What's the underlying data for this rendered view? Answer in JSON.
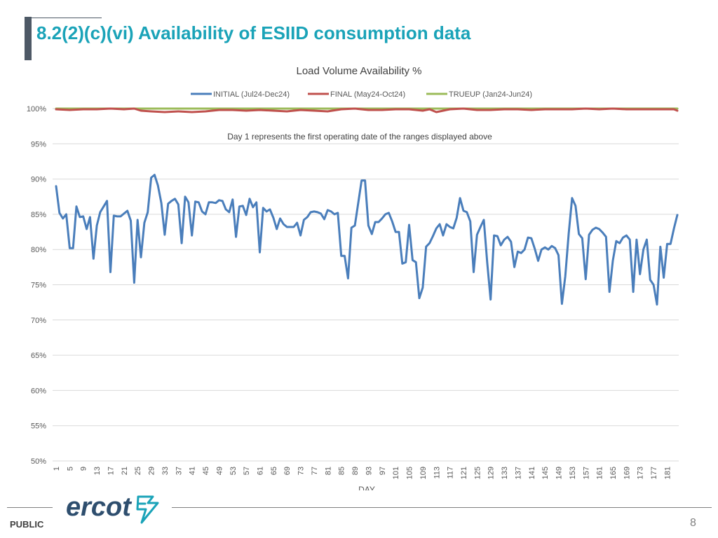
{
  "slide": {
    "title": "8.2(2)(c)(vi) Availability of ESIID consumption data",
    "footer_label": "PUBLIC",
    "page_number": "8",
    "logo_text": "ercot"
  },
  "colors": {
    "title": "#1aa3b8",
    "initial": "#4a7ebb",
    "final": "#c0504d",
    "trueup": "#9bbb59",
    "grid": "#d9d9d9",
    "text": "#595959"
  },
  "chart_data": {
    "type": "line",
    "title": "Load Volume Availability %",
    "xlabel": "DAY",
    "ylabel": "",
    "annotation": "Day 1 represents the first operating date of the ranges displayed above",
    "ylim": [
      50,
      100
    ],
    "yticks": [
      50,
      55,
      60,
      65,
      70,
      75,
      80,
      85,
      90,
      95,
      100
    ],
    "ytick_labels": [
      "50%",
      "55%",
      "60%",
      "65%",
      "70%",
      "75%",
      "80%",
      "85%",
      "90%",
      "95%",
      "100%"
    ],
    "xlim": [
      1,
      184
    ],
    "xticks": [
      1,
      5,
      9,
      13,
      17,
      21,
      25,
      29,
      33,
      37,
      41,
      45,
      49,
      53,
      57,
      61,
      65,
      69,
      73,
      77,
      81,
      85,
      89,
      93,
      97,
      101,
      105,
      109,
      113,
      117,
      121,
      125,
      129,
      133,
      137,
      141,
      145,
      149,
      153,
      157,
      161,
      165,
      169,
      173,
      177,
      181
    ],
    "legend_position": "top",
    "grid": true,
    "series": [
      {
        "name": "INITIAL (Jul24-Dec24)",
        "color": "#4a7ebb",
        "x": [
          1,
          2,
          3,
          4,
          5,
          6,
          7,
          8,
          9,
          10,
          11,
          12,
          13,
          14,
          15,
          16,
          17,
          18,
          19,
          20,
          21,
          22,
          23,
          24,
          25,
          26,
          27,
          28,
          29,
          30,
          31,
          32,
          33,
          34,
          35,
          36,
          37,
          38,
          39,
          40,
          41,
          42,
          43,
          44,
          45,
          46,
          47,
          48,
          49,
          50,
          51,
          52,
          53,
          54,
          55,
          56,
          57,
          58,
          59,
          60,
          61,
          62,
          63,
          64,
          65,
          66,
          67,
          68,
          69,
          70,
          71,
          72,
          73,
          74,
          75,
          76,
          77,
          78,
          79,
          80,
          81,
          82,
          83,
          84,
          85,
          86,
          87,
          88,
          89,
          90,
          91,
          92,
          93,
          94,
          95,
          96,
          97,
          98,
          99,
          100,
          101,
          102,
          103,
          104,
          105,
          106,
          107,
          108,
          109,
          110,
          111,
          112,
          113,
          114,
          115,
          116,
          117,
          118,
          119,
          120,
          121,
          122,
          123,
          124,
          125,
          126,
          127,
          128,
          129,
          130,
          131,
          132,
          133,
          134,
          135,
          136,
          137,
          138,
          139,
          140,
          141,
          142,
          143,
          144,
          145,
          146,
          147,
          148,
          149,
          150,
          151,
          152,
          153,
          154,
          155,
          156,
          157,
          158,
          159,
          160,
          161,
          162,
          163,
          164,
          165,
          166,
          167,
          168,
          169,
          170,
          171,
          172,
          173,
          174,
          175,
          176,
          177,
          178,
          179,
          180,
          181,
          182,
          183,
          184
        ],
        "values": [
          89.0,
          85.2,
          84.4,
          85.0,
          80.2,
          80.2,
          86.1,
          84.6,
          84.7,
          82.9,
          84.6,
          78.7,
          83.4,
          85.3,
          86.1,
          86.9,
          76.8,
          84.8,
          84.7,
          84.7,
          85.1,
          85.5,
          84.1,
          75.3,
          84.2,
          78.9,
          83.8,
          85.3,
          90.2,
          90.6,
          89.1,
          86.6,
          82.1,
          86.5,
          86.9,
          87.2,
          86.4,
          80.9,
          87.5,
          86.7,
          82.0,
          86.8,
          86.7,
          85.4,
          85.0,
          86.7,
          86.7,
          86.6,
          87.0,
          86.9,
          85.7,
          85.3,
          87.1,
          81.8,
          86.1,
          86.2,
          84.9,
          87.2,
          86.0,
          86.7,
          79.6,
          85.9,
          85.4,
          85.7,
          84.5,
          82.9,
          84.4,
          83.6,
          83.2,
          83.2,
          83.2,
          83.8,
          82.0,
          84.2,
          84.6,
          85.3,
          85.4,
          85.3,
          85.1,
          84.3,
          85.6,
          85.4,
          85.0,
          85.2,
          79.1,
          79.1,
          75.9,
          83.1,
          83.4,
          86.6,
          89.8,
          89.8,
          83.4,
          82.2,
          83.9,
          83.9,
          84.4,
          85.0,
          85.2,
          84.0,
          82.5,
          82.5,
          78.0,
          78.2,
          83.5,
          78.5,
          78.2,
          73.1,
          74.6,
          80.4,
          80.9,
          81.9,
          83.0,
          83.6,
          82.0,
          83.6,
          83.2,
          83.0,
          84.5,
          87.3,
          85.5,
          85.3,
          84.0,
          76.8,
          82.1,
          83.2,
          84.2,
          78.1,
          72.9,
          82.0,
          81.9,
          80.6,
          81.4,
          81.8,
          81.1,
          77.5,
          79.7,
          79.5,
          80.0,
          81.7,
          81.6,
          80.1,
          78.4,
          80.0,
          80.3,
          80.0,
          80.5,
          80.2,
          79.2,
          72.3,
          76.2,
          82.3,
          87.3,
          86.2,
          82.2,
          81.6,
          75.8,
          82.1,
          82.8,
          83.1,
          82.9,
          82.4,
          81.8,
          74.0,
          78.4,
          81.2,
          80.9,
          81.7,
          82.0,
          81.4,
          74.0,
          81.4,
          76.5,
          80.0,
          81.4,
          75.7,
          75.0,
          72.2,
          80.4,
          76.0,
          80.8,
          80.8,
          83.0,
          84.9
        ]
      },
      {
        "name": "FINAL (May24-Oct24)",
        "color": "#c0504d",
        "x": [
          1,
          5,
          9,
          13,
          17,
          21,
          24,
          26,
          29,
          33,
          37,
          41,
          45,
          49,
          53,
          57,
          61,
          65,
          69,
          73,
          77,
          81,
          85,
          89,
          93,
          97,
          101,
          105,
          109,
          111,
          113,
          117,
          121,
          125,
          129,
          133,
          137,
          141,
          145,
          149,
          153,
          157,
          161,
          165,
          169,
          173,
          177,
          181,
          183,
          184
        ],
        "values": [
          99.9,
          99.8,
          99.9,
          99.9,
          100.0,
          99.9,
          100.0,
          99.7,
          99.6,
          99.5,
          99.6,
          99.5,
          99.6,
          99.8,
          99.8,
          99.7,
          99.8,
          99.7,
          99.6,
          99.8,
          99.7,
          99.6,
          99.9,
          100.0,
          99.8,
          99.8,
          99.9,
          99.9,
          99.7,
          99.9,
          99.5,
          99.9,
          100.0,
          99.8,
          99.8,
          99.9,
          99.9,
          99.8,
          99.9,
          99.9,
          99.9,
          100.0,
          99.9,
          100.0,
          99.9,
          99.9,
          99.9,
          99.9,
          99.9,
          99.7
        ]
      },
      {
        "name": "TRUEUP (Jan24-Jun24)",
        "color": "#9bbb59",
        "x": [
          1,
          184
        ],
        "values": [
          100.0,
          100.0
        ]
      }
    ]
  }
}
